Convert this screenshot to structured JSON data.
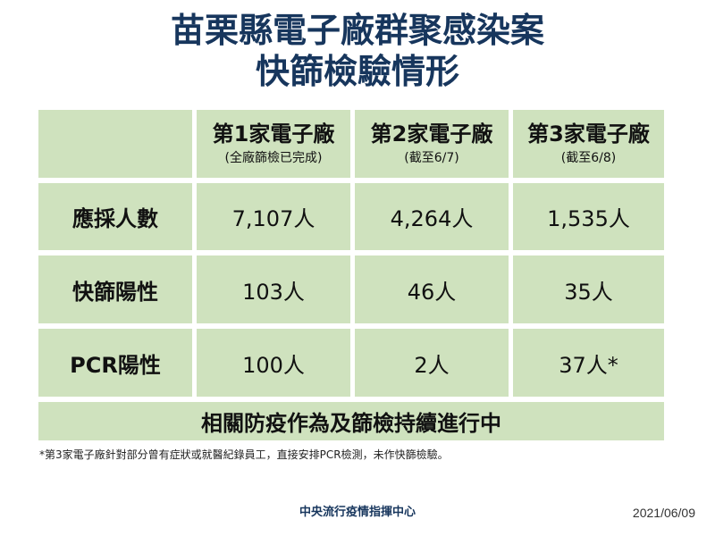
{
  "title": {
    "line1": "苗栗縣電子廠群聚感染案",
    "line2": "快篩檢驗情形"
  },
  "table": {
    "headers": [
      {
        "main": "",
        "sub": ""
      },
      {
        "main": "第1家電子廠",
        "sub": "(全廠篩檢已完成)"
      },
      {
        "main": "第2家電子廠",
        "sub": "(截至6/7)"
      },
      {
        "main": "第3家電子廠",
        "sub": "(截至6/8)"
      }
    ],
    "rows": [
      {
        "label": "應採人數",
        "values": [
          "7,107人",
          "4,264人",
          "1,535人"
        ]
      },
      {
        "label": "快篩陽性",
        "values": [
          "103人",
          "46人",
          "35人"
        ]
      },
      {
        "label": "PCR陽性",
        "values": [
          "100人",
          "2人",
          "37人*"
        ]
      }
    ],
    "footer": "相關防疫作為及篩檢持續進行中"
  },
  "footnote": "*第3家電子廠針對部分曾有症狀或就醫紀錄員工，直接安排PCR檢測，未作快篩檢驗。",
  "agency": "中央流行疫情指揮中心",
  "date": "2021/06/09",
  "colors": {
    "title": "#17365d",
    "cell": "#cfe2be"
  }
}
